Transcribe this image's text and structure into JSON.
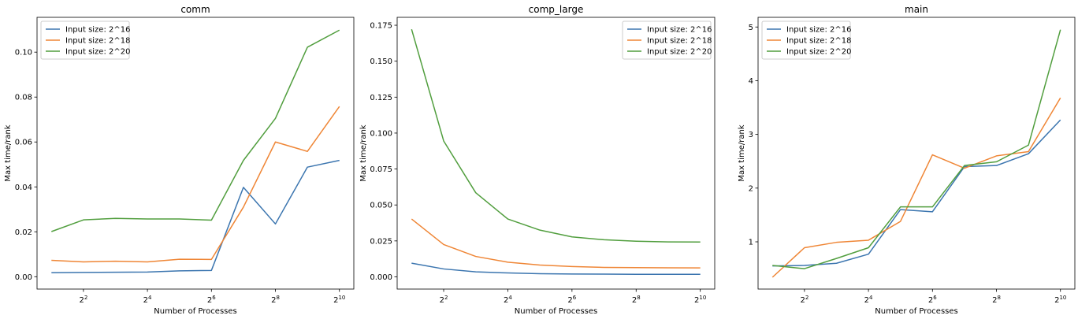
{
  "chart_data": [
    {
      "type": "line",
      "title": "comm",
      "xlabel": "Number of Processes",
      "ylabel": "Max time/rank",
      "x_scale": "log2",
      "x": [
        2,
        4,
        8,
        16,
        32,
        64,
        128,
        256,
        512,
        1024
      ],
      "x_ticks": [
        4,
        16,
        64,
        256,
        1024
      ],
      "x_tick_labels": [
        {
          "base": "2",
          "exp": "2"
        },
        {
          "base": "2",
          "exp": "4"
        },
        {
          "base": "2",
          "exp": "6"
        },
        {
          "base": "2",
          "exp": "8"
        },
        {
          "base": "2",
          "exp": "10"
        }
      ],
      "ylim": [
        -0.0055,
        0.1155
      ],
      "y_ticks": [
        0.0,
        0.02,
        0.04,
        0.06,
        0.08,
        0.1
      ],
      "y_tick_labels": [
        "0.00",
        "0.02",
        "0.04",
        "0.06",
        "0.08",
        "0.10"
      ],
      "legend_position": "upper left",
      "series": [
        {
          "name": "Input size: 2^16",
          "color": "#3b75af",
          "values": [
            0.0018,
            0.0019,
            0.002,
            0.0021,
            0.0026,
            0.0028,
            0.0398,
            0.0235,
            0.0488,
            0.0518
          ]
        },
        {
          "name": "Input size: 2^18",
          "color": "#ef8636",
          "values": [
            0.0073,
            0.0066,
            0.0069,
            0.0066,
            0.0078,
            0.0077,
            0.031,
            0.06,
            0.0558,
            0.0758
          ]
        },
        {
          "name": "Input size: 2^20",
          "color": "#519e3e",
          "values": [
            0.0201,
            0.0253,
            0.026,
            0.0257,
            0.0257,
            0.0252,
            0.0518,
            0.0705,
            0.1022,
            0.1098
          ]
        }
      ]
    },
    {
      "type": "line",
      "title": "comp_large",
      "xlabel": "Number of Processes",
      "ylabel": "Max time/rank",
      "x_scale": "log2",
      "x": [
        2,
        4,
        8,
        16,
        32,
        64,
        128,
        256,
        512,
        1024
      ],
      "x_ticks": [
        4,
        16,
        64,
        256,
        1024
      ],
      "x_tick_labels": [
        {
          "base": "2",
          "exp": "2"
        },
        {
          "base": "2",
          "exp": "4"
        },
        {
          "base": "2",
          "exp": "6"
        },
        {
          "base": "2",
          "exp": "8"
        },
        {
          "base": "2",
          "exp": "10"
        }
      ],
      "ylim": [
        -0.0085,
        0.1805
      ],
      "y_ticks": [
        0.0,
        0.025,
        0.05,
        0.075,
        0.1,
        0.125,
        0.15,
        0.175
      ],
      "y_tick_labels": [
        "0.000",
        "0.025",
        "0.050",
        "0.075",
        "0.100",
        "0.125",
        "0.150",
        "0.175"
      ],
      "legend_position": "upper right",
      "series": [
        {
          "name": "Input size: 2^16",
          "color": "#3b75af",
          "values": [
            0.0095,
            0.0055,
            0.0035,
            0.0027,
            0.0022,
            0.002,
            0.0019,
            0.0018,
            0.0018,
            0.0018
          ]
        },
        {
          "name": "Input size: 2^18",
          "color": "#ef8636",
          "values": [
            0.0402,
            0.0225,
            0.0142,
            0.0102,
            0.0082,
            0.0072,
            0.0066,
            0.0064,
            0.0063,
            0.0062
          ]
        },
        {
          "name": "Input size: 2^20",
          "color": "#519e3e",
          "values": [
            0.1722,
            0.0945,
            0.0585,
            0.0402,
            0.0325,
            0.0278,
            0.0258,
            0.0248,
            0.0243,
            0.0242
          ]
        }
      ]
    },
    {
      "type": "line",
      "title": "main",
      "xlabel": "Number of Processes",
      "ylabel": "Max time/rank",
      "x_scale": "log2",
      "x": [
        2,
        4,
        8,
        16,
        32,
        64,
        128,
        256,
        512,
        1024
      ],
      "x_ticks": [
        4,
        16,
        64,
        256,
        1024
      ],
      "x_tick_labels": [
        {
          "base": "2",
          "exp": "2"
        },
        {
          "base": "2",
          "exp": "4"
        },
        {
          "base": "2",
          "exp": "6"
        },
        {
          "base": "2",
          "exp": "8"
        },
        {
          "base": "2",
          "exp": "10"
        }
      ],
      "ylim": [
        0.12,
        5.18
      ],
      "y_ticks": [
        1,
        2,
        3,
        4,
        5
      ],
      "y_tick_labels": [
        "1",
        "2",
        "3",
        "4",
        "5"
      ],
      "legend_position": "upper left",
      "series": [
        {
          "name": "Input size: 2^16",
          "color": "#3b75af",
          "values": [
            0.55,
            0.56,
            0.6,
            0.77,
            1.6,
            1.56,
            2.4,
            2.42,
            2.64,
            3.27
          ]
        },
        {
          "name": "Input size: 2^18",
          "color": "#ef8636",
          "values": [
            0.34,
            0.89,
            0.99,
            1.03,
            1.38,
            2.62,
            2.37,
            2.6,
            2.68,
            3.68
          ]
        },
        {
          "name": "Input size: 2^20",
          "color": "#519e3e",
          "values": [
            0.56,
            0.5,
            0.69,
            0.89,
            1.65,
            1.65,
            2.42,
            2.49,
            2.8,
            4.95
          ]
        }
      ]
    }
  ]
}
